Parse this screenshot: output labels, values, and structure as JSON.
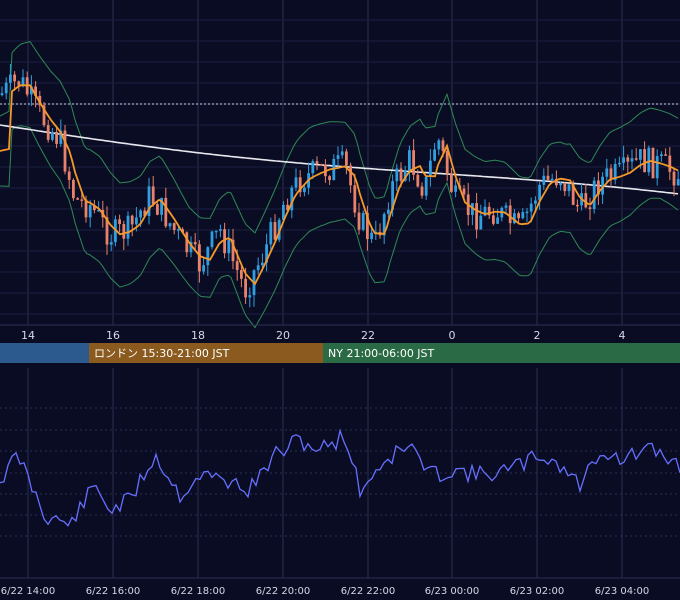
{
  "chart_data": [
    {
      "type": "candlestick",
      "name": "price",
      "x_ticks": [
        "14",
        "16",
        "18",
        "20",
        "22",
        "0",
        "2",
        "4"
      ],
      "colors": {
        "up": "#2f9fe0",
        "down": "#e8826a",
        "bb": "#2e8a55",
        "ma_short": "#f59a2a",
        "ma_long": "#e8e8ee",
        "bg": "#0a0c24",
        "grid": "#1f2340"
      },
      "series": [
        {
          "label": "candles"
        },
        {
          "label": "bollinger"
        },
        {
          "label": "ma_short"
        },
        {
          "label": "ma_long"
        }
      ],
      "grid": true
    },
    {
      "type": "line",
      "name": "oscillator",
      "x_ticks": [
        "6/22 14:00",
        "6/22 16:00",
        "6/22 18:00",
        "6/22 20:00",
        "6/22 22:00",
        "6/23 00:00",
        "6/23 02:00",
        "6/23 04:00"
      ],
      "colors": {
        "line": "#6670ff"
      },
      "grid": true
    }
  ],
  "sessions": [
    {
      "label": "",
      "color": "#2d5a8e"
    },
    {
      "label": "ロンドン 15:30-21:00 JST",
      "color": "#8a5a1e"
    },
    {
      "label": "NY 21:00-06:00 JST",
      "color": "#2a6a44"
    }
  ]
}
